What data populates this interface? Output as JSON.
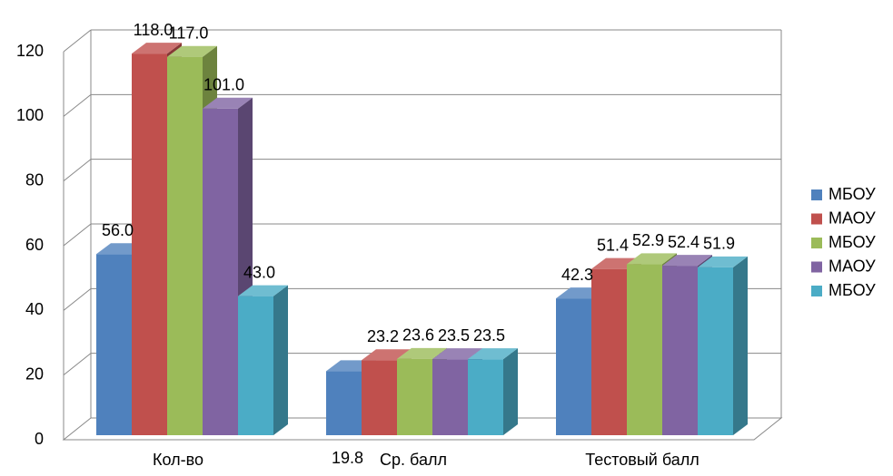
{
  "chart_data": {
    "type": "bar3d",
    "categories": [
      "Кол-во",
      "Ср. балл",
      "Тестовый балл"
    ],
    "series": [
      {
        "name": "МБОУ",
        "color": "#4f81bd",
        "values": [
          56.0,
          19.8,
          42.3
        ],
        "value_labels": [
          "56.0",
          "19.8",
          "42.3"
        ]
      },
      {
        "name": "МАОУ",
        "color": "#c0504d",
        "values": [
          118.0,
          23.2,
          51.4
        ],
        "value_labels": [
          "118.0",
          "23.2",
          "51.4"
        ]
      },
      {
        "name": "МБОУ",
        "color": "#9bbb59",
        "values": [
          117.0,
          23.6,
          52.9
        ],
        "value_labels": [
          "117.0",
          "23.6",
          "52.9"
        ]
      },
      {
        "name": "МАОУ",
        "color": "#8064a2",
        "values": [
          101.0,
          23.5,
          52.4
        ],
        "value_labels": [
          "101.0",
          "23.5",
          "52.4"
        ]
      },
      {
        "name": "МБОУ",
        "color": "#4bacc6",
        "values": [
          43.0,
          23.5,
          51.9
        ],
        "value_labels": [
          "43.0",
          "23.5",
          "51.9"
        ]
      }
    ],
    "ylim": [
      0,
      120
    ],
    "yticks": [
      0,
      20,
      40,
      60,
      80,
      100,
      120
    ],
    "grid": true,
    "legend": "right"
  }
}
